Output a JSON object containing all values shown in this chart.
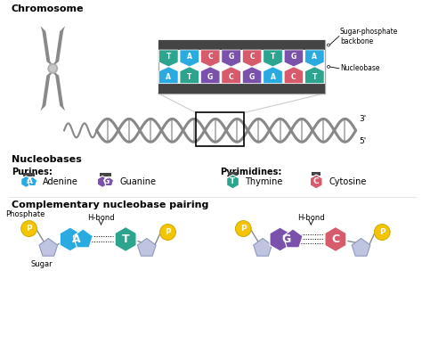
{
  "bg_color": "#ffffff",
  "chromosome_label": "Chromosome",
  "nucleobases_label": "Nucleobases",
  "purines_label": "Purines:",
  "pyrimidines_label": "Pyrimidines:",
  "complementary_label": "Complementary nucleobase pairing",
  "sugar_phosphate_label": "Sugar-phosphate\nbackbone",
  "nucleobase_label": "Nucleobase",
  "adenine_label": "Adenine",
  "guanine_label": "Guanine",
  "thymine_label": "Thymine",
  "cytosine_label": "Cytosine",
  "phosphate_label": "Phosphate",
  "sugar_label": "Sugar",
  "hbond_label": "H-bond",
  "color_adenine": "#29ABE2",
  "color_guanine": "#7B52AB",
  "color_thymine": "#2DA58E",
  "color_cytosine": "#D75B6A",
  "color_phosphate": "#F5C400",
  "color_sugar": "#BFC5E0",
  "color_gray": "#888888",
  "color_chrom": "#898989",
  "color_dark": "#444444",
  "dna_bases_top": [
    "T",
    "A",
    "C",
    "G",
    "C",
    "T",
    "G",
    "A"
  ],
  "dna_bases_bottom": [
    "A",
    "T",
    "G",
    "C",
    "G",
    "A",
    "C",
    "T"
  ],
  "dna_base_colors": {
    "T": "#2DA58E",
    "A": "#29ABE2",
    "C": "#D75B6A",
    "G": "#7B52AB"
  }
}
